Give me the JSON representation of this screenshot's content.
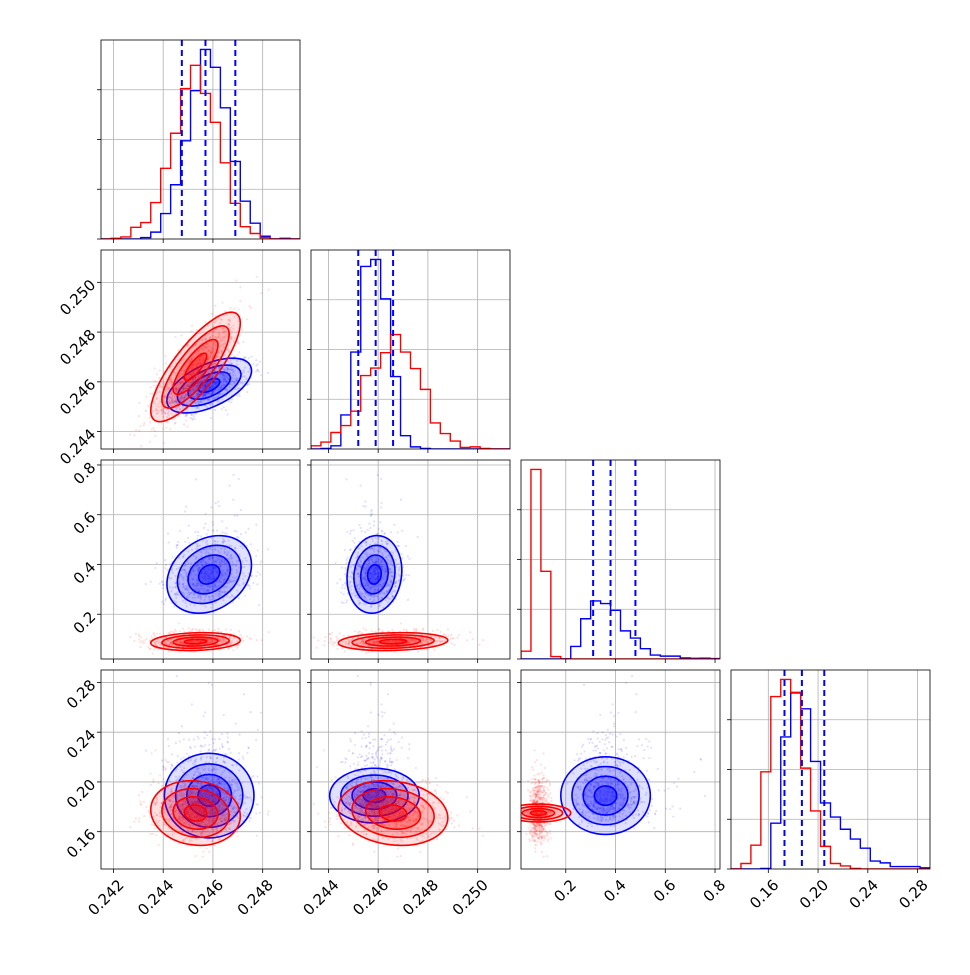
{
  "figure": {
    "title": "",
    "description_type": "corner plot",
    "series_colors": {
      "blue": "#0000ff",
      "red": "#ff0000"
    },
    "grid": true
  },
  "chart_data": {
    "type": "corner",
    "parameters": [
      "p1",
      "p2",
      "p3",
      "p4"
    ],
    "axis_labels": [
      "",
      "",
      "",
      ""
    ],
    "ranges": [
      [
        0.2415,
        0.2495
      ],
      [
        0.2433,
        0.2513
      ],
      [
        0.02,
        0.82
      ],
      [
        0.13,
        0.29
      ]
    ],
    "ticks": {
      "p1": [
        0.242,
        0.244,
        0.246,
        0.248
      ],
      "p2": [
        0.244,
        0.246,
        0.248,
        0.25
      ],
      "p3": [
        0.2,
        0.4,
        0.6,
        0.8
      ],
      "p4": [
        0.16,
        0.2,
        0.24,
        0.28
      ]
    },
    "tick_labels": {
      "p1": [
        "0.242",
        "0.244",
        "0.246",
        "0.248"
      ],
      "p2": [
        "0.244",
        "0.246",
        "0.248",
        "0.250"
      ],
      "p3": [
        "0.2",
        "0.4",
        "0.6",
        "0.8"
      ],
      "p4": [
        "0.16",
        "0.20",
        "0.24",
        "0.28"
      ]
    },
    "series": [
      {
        "color": "#0000ff",
        "means": [
          0.24585,
          0.24585,
          0.36,
          0.189
        ],
        "sds": [
          0.00085,
          0.00055,
          0.078,
          0.018
        ],
        "skew": [
          0,
          0,
          0.8,
          1.1
        ],
        "correlations": [
          [
            0,
            1,
            0.55
          ],
          [
            0,
            2,
            0.25
          ],
          [
            1,
            2,
            0.1
          ],
          [
            0,
            3,
            0.0
          ],
          [
            1,
            3,
            0.0
          ],
          [
            2,
            3,
            0.0
          ]
        ],
        "quantile_lines": [
          [
            0.24475,
            0.2457,
            0.2469
          ],
          [
            0.2452,
            0.2459,
            0.2466
          ],
          [
            0.31,
            0.38,
            0.48
          ],
          [
            0.173,
            0.187,
            0.205
          ]
        ]
      },
      {
        "color": "#ff0000",
        "means": [
          0.2453,
          0.2466,
          0.09,
          0.175
        ],
        "sds": [
          0.0009,
          0.0011,
          0.018,
          0.013
        ],
        "skew": [
          0,
          0,
          0.4,
          0.3
        ],
        "correlations": [
          [
            0,
            1,
            0.8
          ],
          [
            0,
            2,
            0.15
          ],
          [
            1,
            2,
            0.15
          ],
          [
            0,
            3,
            -0.1
          ],
          [
            1,
            3,
            -0.15
          ],
          [
            2,
            3,
            0.0
          ]
        ],
        "quantile_lines": []
      }
    ],
    "contour_levels_sigma": [
      0.5,
      1.0,
      1.5,
      2.0
    ]
  }
}
